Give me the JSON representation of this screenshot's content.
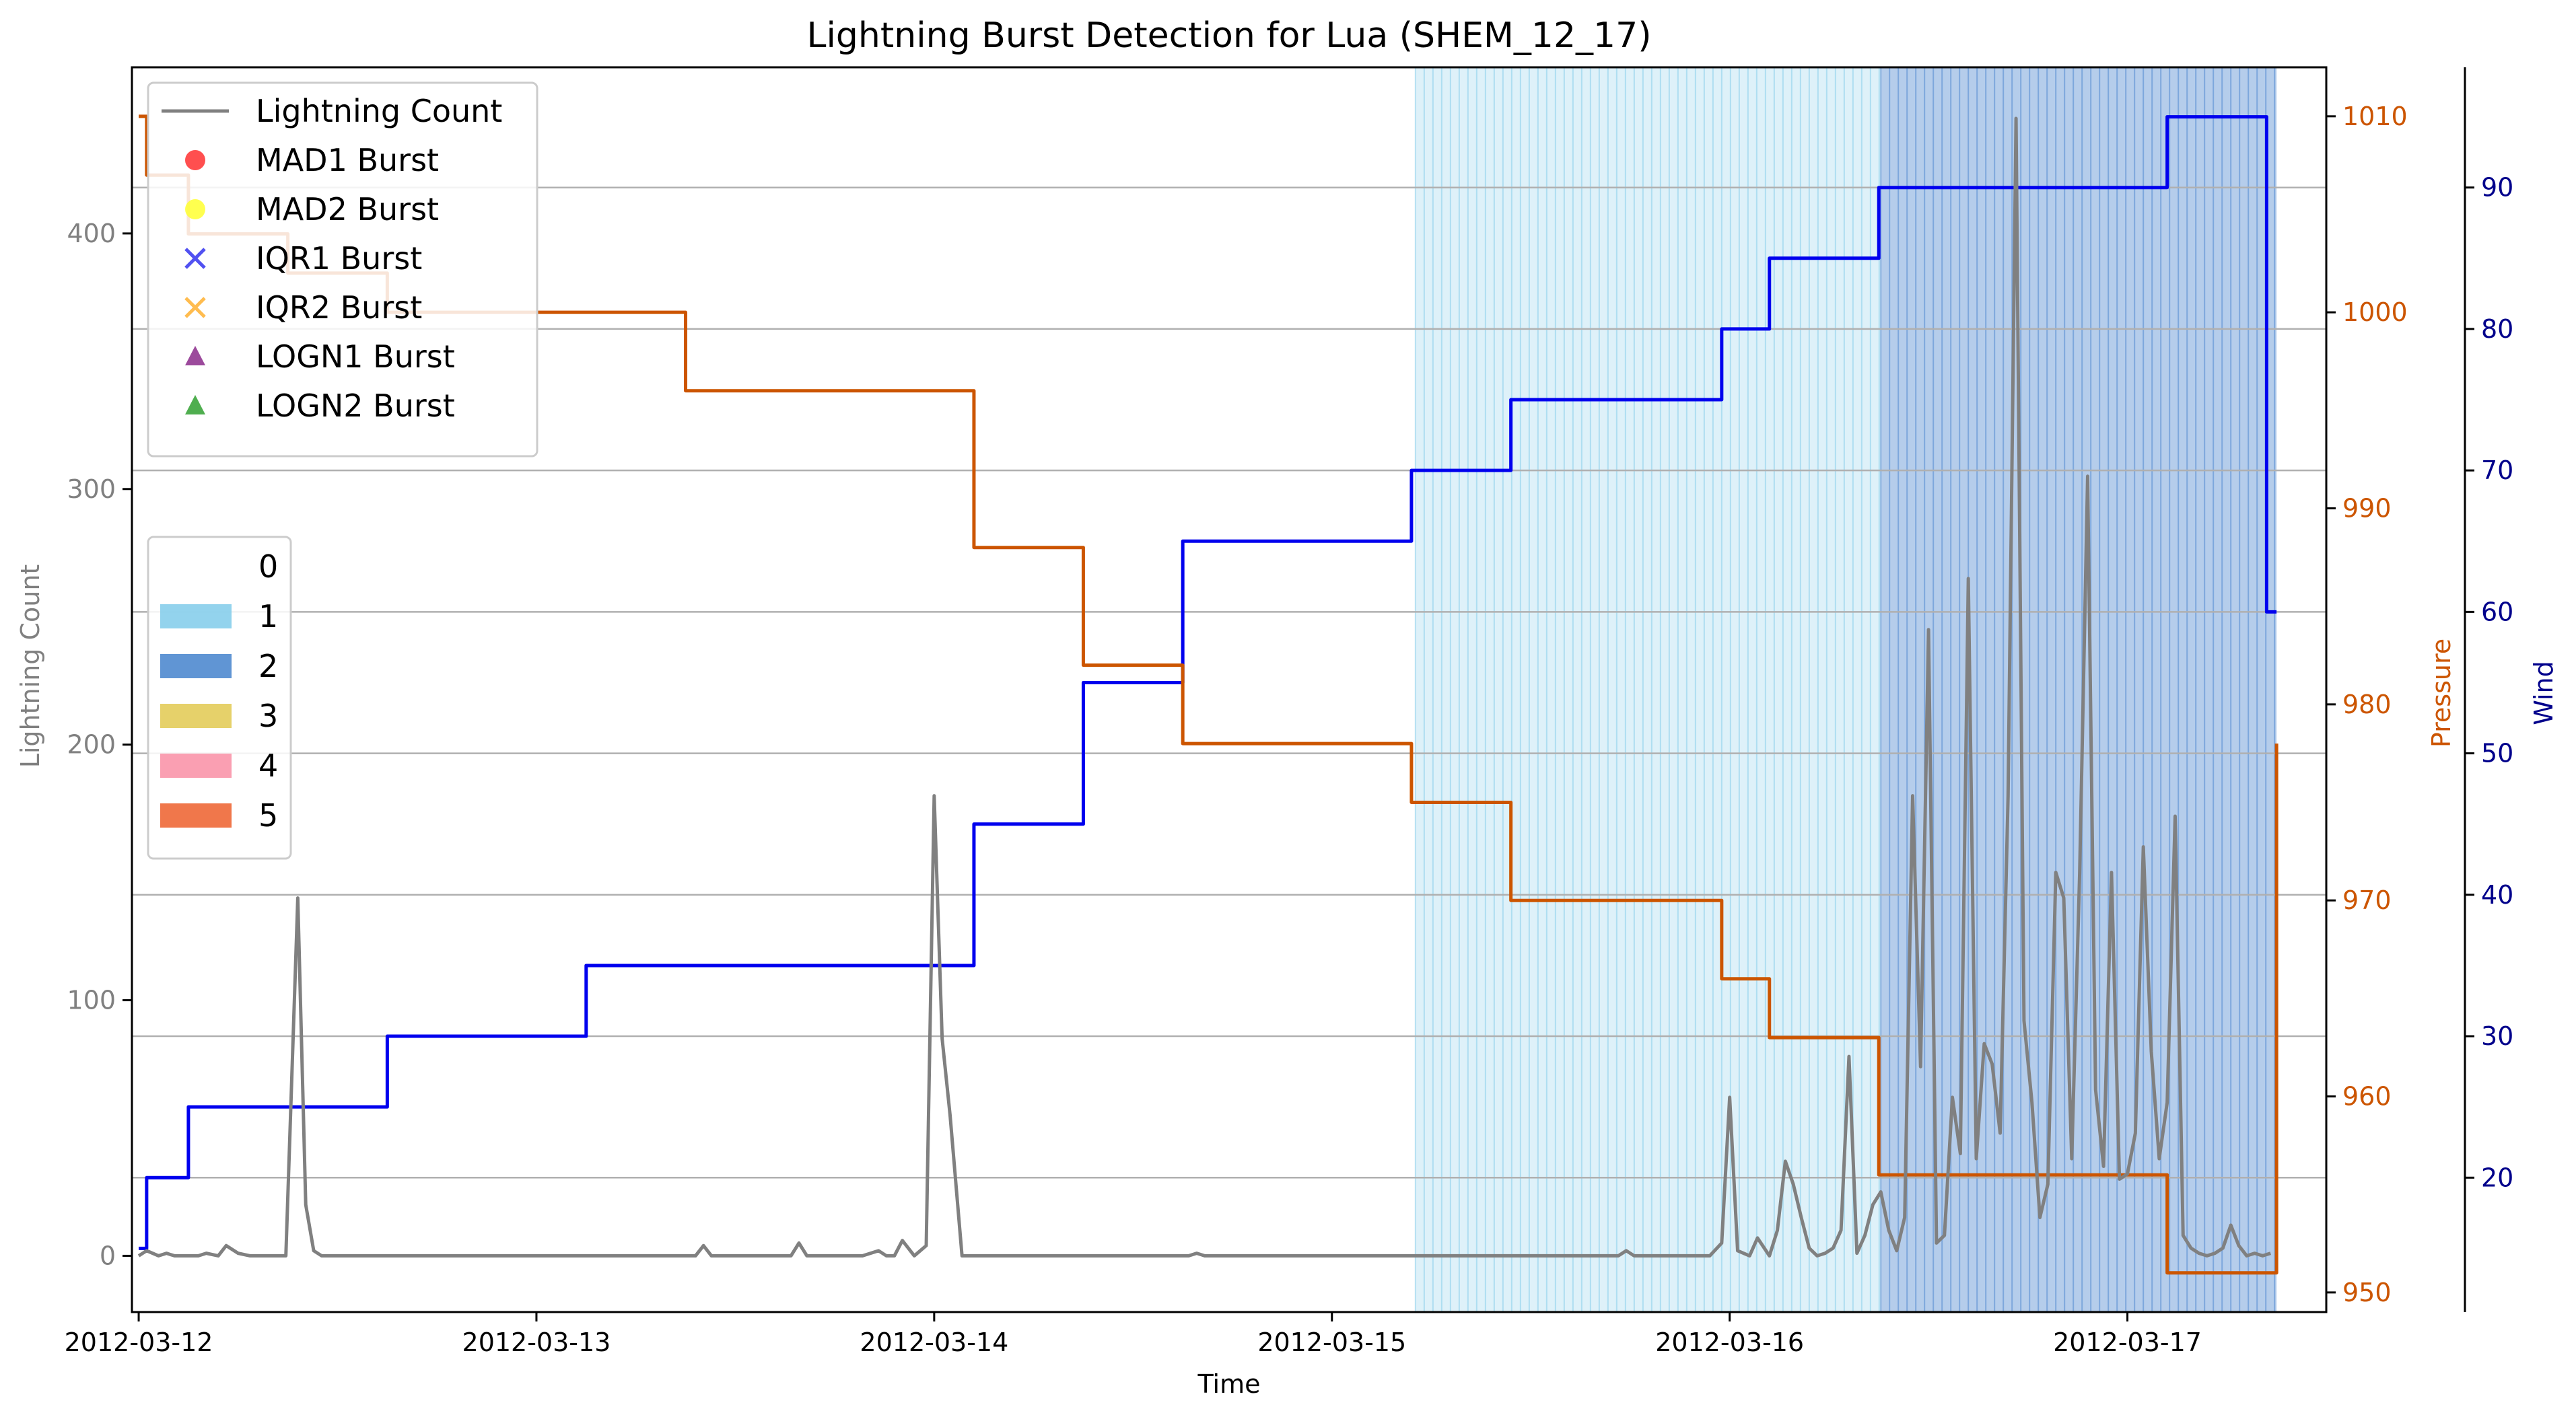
{
  "chart_data": {
    "type": "line",
    "title": "Lightning Burst Detection for Lua (SHEM_12_17)",
    "xlabel": "Time",
    "ylabel_left": "Lightning Count",
    "ylabel_pressure": "Pressure",
    "ylabel_wind": "Wind",
    "xlim": [
      -0.017,
      5.5
    ],
    "ylim_left": [
      -22,
      465
    ],
    "ylim_pressure": [
      949,
      1012.5
    ],
    "ylim_wind": [
      10.5,
      98.5
    ],
    "x_ticks": [
      0,
      1,
      2,
      3,
      4,
      5
    ],
    "x_tick_labels": [
      "2012-03-12",
      "2012-03-13",
      "2012-03-14",
      "2012-03-15",
      "2012-03-16",
      "2012-03-17"
    ],
    "y_ticks_left": [
      0,
      100,
      200,
      300,
      400
    ],
    "y_ticks_pressure": [
      950,
      960,
      970,
      980,
      990,
      1000,
      1010
    ],
    "y_ticks_wind": [
      20,
      30,
      40,
      50,
      60,
      70,
      80,
      90
    ],
    "grid": "horizontal lines at wind ticks",
    "colors": {
      "lightning": "#808080",
      "pressure": "#cc5500",
      "wind": "#0000ee",
      "pressure_axis": "#cc5500",
      "wind_axis": "#00008b",
      "left_axis": "#808080",
      "cat1": "#87ceeb",
      "cat2": "#4f89cf",
      "cat3": "#e3cc5a",
      "cat4": "#f995aa",
      "cat5": "#ee6837"
    },
    "category_bands": [
      {
        "category": 1,
        "x_start": 3.21,
        "x_end": 4.38
      },
      {
        "category": 2,
        "x_start": 4.38,
        "x_end": 5.375
      }
    ],
    "legend_series": [
      {
        "label": "Lightning Count",
        "marker": "line",
        "color": "#808080"
      },
      {
        "label": "MAD1 Burst",
        "marker": "circle",
        "color": "#ff3030"
      },
      {
        "label": "MAD2 Burst",
        "marker": "circle",
        "color": "#ffff30"
      },
      {
        "label": "IQR1 Burst",
        "marker": "x",
        "color": "#3333ee"
      },
      {
        "label": "IQR2 Burst",
        "marker": "x",
        "color": "#ffb030"
      },
      {
        "label": "LOGN1 Burst",
        "marker": "triangle",
        "color": "#8b2a8b"
      },
      {
        "label": "LOGN2 Burst",
        "marker": "triangle",
        "color": "#30a030"
      }
    ],
    "legend_categories": [
      {
        "label": "0",
        "color": "#ffffff"
      },
      {
        "label": "1",
        "color": "#87ceeb"
      },
      {
        "label": "2",
        "color": "#4f89cf"
      },
      {
        "label": "3",
        "color": "#e3cc5a"
      },
      {
        "label": "4",
        "color": "#f995aa"
      },
      {
        "label": "5",
        "color": "#ee6837"
      }
    ],
    "series": [
      {
        "name": "Wind",
        "axis": "wind",
        "style": "step",
        "x": [
          0,
          0.02,
          0.125,
          0.625,
          1.125,
          2.1,
          2.375,
          2.625,
          3.2,
          3.45,
          3.98,
          4.1,
          4.375,
          5.1,
          5.35,
          5.375
        ],
        "values": [
          15,
          20,
          25,
          30,
          35,
          45,
          55,
          65,
          70,
          75,
          80,
          85,
          90,
          95,
          60,
          60
        ]
      },
      {
        "name": "Pressure",
        "axis": "pressure",
        "style": "step",
        "x": [
          0,
          0.02,
          0.125,
          0.375,
          0.625,
          1.375,
          2.1,
          2.375,
          2.625,
          3.2,
          3.45,
          3.98,
          4.1,
          4.375,
          5.1,
          5.375
        ],
        "values": [
          1010,
          1007,
          1004,
          1002,
          1000,
          996,
          988,
          982,
          978,
          975,
          970,
          966,
          963,
          956,
          951,
          978
        ]
      },
      {
        "name": "Lightning Count",
        "axis": "left",
        "x": [
          0,
          0.02,
          0.05,
          0.07,
          0.09,
          0.15,
          0.17,
          0.2,
          0.22,
          0.25,
          0.28,
          0.32,
          0.37,
          0.4,
          0.42,
          0.44,
          0.46,
          1.0,
          1.4,
          1.42,
          1.44,
          1.64,
          1.66,
          1.68,
          1.82,
          1.86,
          1.88,
          1.9,
          1.92,
          1.95,
          1.98,
          2.0,
          2.02,
          2.04,
          2.07,
          2.08,
          2.6,
          2.62,
          2.64,
          2.66,
          2.68,
          2.72,
          2.74,
          2.76,
          2.78,
          2.8,
          2.82,
          2.84,
          2.86,
          3.0,
          3.2,
          3.5,
          3.72,
          3.74,
          3.76,
          3.95,
          3.98,
          4.0,
          4.02,
          4.05,
          4.07,
          4.1,
          4.12,
          4.14,
          4.16,
          4.18,
          4.2,
          4.22,
          4.24,
          4.26,
          4.28,
          4.3,
          4.32,
          4.34,
          4.36,
          4.38,
          4.4,
          4.42,
          4.44,
          4.46,
          4.48,
          4.5,
          4.52,
          4.54,
          4.56,
          4.58,
          4.6,
          4.62,
          4.64,
          4.66,
          4.68,
          4.7,
          4.72,
          4.74,
          4.76,
          4.78,
          4.8,
          4.82,
          4.84,
          4.86,
          4.88,
          4.9,
          4.92,
          4.94,
          4.96,
          4.98,
          5.0,
          5.02,
          5.04,
          5.06,
          5.08,
          5.1,
          5.12,
          5.14,
          5.16,
          5.18,
          5.2,
          5.22,
          5.24,
          5.26,
          5.28,
          5.3,
          5.32,
          5.34,
          5.36
        ],
        "values": [
          0,
          2,
          0,
          1,
          0,
          0,
          1,
          0,
          4,
          1,
          0,
          0,
          0,
          140,
          20,
          2,
          0,
          0,
          0,
          4,
          0,
          0,
          5,
          0,
          0,
          2,
          0,
          0,
          6,
          0,
          4,
          180,
          85,
          55,
          0,
          0,
          0,
          0,
          0,
          1,
          0,
          0,
          0,
          0,
          0,
          0,
          0,
          0,
          0,
          0,
          0,
          0,
          0,
          2,
          0,
          0,
          5,
          62,
          2,
          0,
          7,
          0,
          10,
          37,
          28,
          15,
          3,
          0,
          1,
          3,
          10,
          78,
          1,
          8,
          20,
          25,
          10,
          2,
          15,
          180,
          74,
          245,
          5,
          8,
          62,
          40,
          265,
          38,
          83,
          75,
          48,
          180,
          445,
          92,
          60,
          15,
          28,
          150,
          140,
          38,
          150,
          305,
          65,
          35,
          150,
          30,
          32,
          48,
          160,
          80,
          38,
          60,
          172,
          8,
          3,
          1,
          0,
          1,
          3,
          12,
          4,
          0,
          1,
          0,
          1
        ]
      }
    ]
  }
}
